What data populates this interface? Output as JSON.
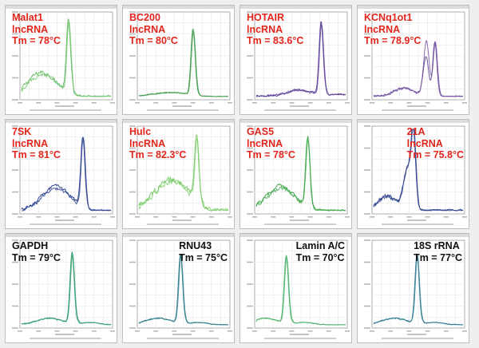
{
  "colors": {
    "background": "#efefef",
    "red_label": "#e1251b",
    "black_label": "#111111"
  },
  "chart_data": [
    {
      "type": "line",
      "label": [
        "Malat1",
        "lncRNA",
        "Tm = 78°C"
      ],
      "label_color": "red",
      "label_pos": "top-left",
      "color": "#6cc06a",
      "peak_x": 0.52,
      "peak_h": 0.95,
      "hump": "left-broad",
      "noise": 0.22
    },
    {
      "type": "line",
      "label": [
        "BC200",
        "lncRNA",
        "Tm = 80°C"
      ],
      "label_color": "red",
      "label_pos": "top-left",
      "color": "#3e9a4a",
      "peak_x": 0.6,
      "peak_h": 0.86,
      "hump": "none",
      "noise": 0.06
    },
    {
      "type": "line",
      "label": [
        "HOTAIR",
        "lncRNA",
        "Tm = 83.6°C"
      ],
      "label_color": "red",
      "label_pos": "top-left",
      "color": "#5a3c96",
      "peak_x": 0.72,
      "peak_h": 0.96,
      "hump": "low",
      "noise": 0.12
    },
    {
      "type": "line",
      "label": [
        "KCNq1ot1",
        "lncRNA",
        "Tm = 78.9°C"
      ],
      "label_color": "red",
      "label_pos": "top-left",
      "color": "#6b4a9e",
      "peak_x": 0.68,
      "peak_h": 0.72,
      "hump": "double-peak",
      "noise": 0.12
    },
    {
      "type": "line",
      "label": [
        "7SK",
        "lncRNA",
        "Tm = 81°C"
      ],
      "label_color": "red",
      "label_pos": "top-left",
      "color": "#2a3f8f",
      "peak_x": 0.68,
      "peak_h": 0.93,
      "hump": "left-broad",
      "noise": 0.18
    },
    {
      "type": "line",
      "label": [
        "Hulc",
        "lncRNA",
        "Tm = 82.3°C"
      ],
      "label_color": "red",
      "label_pos": "top-left",
      "color": "#7ccc6c",
      "peak_x": 0.64,
      "peak_h": 0.82,
      "hump": "wide",
      "noise": 0.3
    },
    {
      "type": "line",
      "label": [
        "GAS5",
        "lncRNA",
        "Tm = 78°C"
      ],
      "label_color": "red",
      "label_pos": "top-left",
      "color": "#3fa84a",
      "peak_x": 0.57,
      "peak_h": 0.92,
      "hump": "left-broad",
      "noise": 0.22
    },
    {
      "type": "line",
      "label": [
        "21A",
        "lncRNA",
        "Tm = 75.8°C"
      ],
      "label_color": "red",
      "label_pos": "top-right",
      "color": "#2b3e8c",
      "peak_x": 0.44,
      "peak_h": 0.86,
      "hump": "shoulder",
      "noise": 0.22
    },
    {
      "type": "line",
      "label": [
        "GAPDH",
        "Tm = 79°C"
      ],
      "label_color": "black",
      "label_pos": "top-left",
      "color": "#2b9a6a",
      "peak_x": 0.56,
      "peak_h": 0.92,
      "hump": "low",
      "noise": 0.06
    },
    {
      "type": "line",
      "label": [
        "RNU43",
        "Tm = 75°C"
      ],
      "label_color": "black",
      "label_pos": "top-right",
      "color": "#2a7a8a",
      "peak_x": 0.46,
      "peak_h": 0.9,
      "hump": "low",
      "noise": 0.06
    },
    {
      "type": "line",
      "label": [
        "Lamin A/C",
        "Tm = 70°C"
      ],
      "label_color": "black",
      "label_pos": "top-right",
      "color": "#4bb36a",
      "peak_x": 0.33,
      "peak_h": 0.88,
      "hump": "low",
      "noise": 0.05
    },
    {
      "type": "line",
      "label": [
        "18S rRNA",
        "Tm = 77°C"
      ],
      "label_color": "black",
      "label_pos": "top-right",
      "color": "#2d7a92",
      "peak_x": 0.48,
      "peak_h": 0.9,
      "hump": "low",
      "noise": 0.06
    }
  ]
}
